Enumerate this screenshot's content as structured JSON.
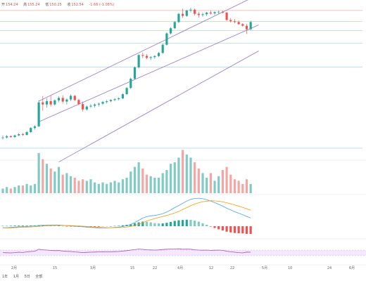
{
  "ohlc": {
    "open_label": "开",
    "open": "154.24",
    "high_label": "高",
    "high": "155.24",
    "low_label": "低",
    "low": "150.25",
    "close_label": "收",
    "close": "152.54",
    "change": "-1.66 (-1.08%)"
  },
  "timeframes": [
    "1年",
    "1月",
    "5日",
    "全部"
  ],
  "colors": {
    "up": "#26a69a",
    "down": "#ef5350",
    "channel": "#9575cd",
    "macd_line": "#42a5f5",
    "signal_line": "#ff9800",
    "rsi_line": "#ab47bc",
    "rsi_band": "#f3e8ff",
    "hline_red": "#ef9a9a",
    "hline_green": "#a5d6a7",
    "hline_teal": "#80cbc4",
    "hline_blue": "#90caf9"
  },
  "chart_data": {
    "type": "candlestick",
    "x_tick_labels": [
      "2月",
      "15",
      "3月",
      "15",
      "22",
      "4月",
      "12",
      "22",
      "5月",
      "10",
      "24",
      "6月"
    ],
    "price_panel": {
      "candles": [
        [
          100,
          101,
          99,
          100
        ],
        [
          100,
          101.2,
          99.5,
          100.6
        ],
        [
          100.6,
          101,
          99.8,
          100.2
        ],
        [
          100.2,
          101.4,
          99.9,
          101
        ],
        [
          101,
          102,
          100.6,
          101.6
        ],
        [
          101.6,
          102.2,
          100.8,
          101.2
        ],
        [
          101.2,
          103,
          101,
          102.6
        ],
        [
          102.6,
          105,
          102.2,
          104.6
        ],
        [
          104.6,
          106,
          103.8,
          105.4
        ],
        [
          105.4,
          118,
          105,
          117
        ],
        [
          117,
          120,
          113,
          116
        ],
        [
          116,
          119,
          114.5,
          117.6
        ],
        [
          117.6,
          120.5,
          115,
          116
        ],
        [
          116,
          118.5,
          115.5,
          118
        ],
        [
          118,
          120,
          117,
          119.2
        ],
        [
          119.2,
          120.5,
          116.5,
          117.4
        ],
        [
          117.4,
          119,
          116,
          118.4
        ],
        [
          118.4,
          121,
          117.6,
          120.2
        ],
        [
          120.2,
          120.6,
          117.6,
          118.2
        ],
        [
          118.2,
          118.8,
          115.6,
          116.2
        ],
        [
          116.2,
          117.4,
          112.6,
          113.6
        ],
        [
          113.6,
          115.5,
          113,
          115
        ],
        [
          115,
          116.2,
          114.3,
          115.4
        ],
        [
          115.4,
          116.6,
          114.6,
          116
        ],
        [
          116,
          117,
          115,
          116.4
        ],
        [
          116.4,
          117.8,
          115.8,
          117.2
        ],
        [
          117.2,
          118.2,
          116.5,
          117.6
        ],
        [
          117.6,
          118.6,
          117,
          118.2
        ],
        [
          118.2,
          119.2,
          117.6,
          118.6
        ],
        [
          118.6,
          119.5,
          118,
          119
        ],
        [
          119,
          121.5,
          118.6,
          121
        ],
        [
          121,
          124.5,
          120.6,
          124
        ],
        [
          124,
          129,
          123.5,
          128.5
        ],
        [
          128.5,
          134.5,
          128,
          134
        ],
        [
          134,
          140.5,
          133.5,
          140
        ],
        [
          140,
          141.2,
          138.5,
          139.6
        ],
        [
          139.6,
          140.5,
          138,
          138.6
        ],
        [
          138.6,
          139.5,
          137.5,
          139
        ],
        [
          139,
          140,
          138.2,
          139.5
        ],
        [
          139.5,
          141.5,
          139,
          141
        ],
        [
          141,
          145.5,
          140.6,
          145
        ],
        [
          145,
          151,
          144.6,
          150.5
        ],
        [
          150.5,
          153.6,
          150,
          153
        ],
        [
          153,
          156.5,
          152.6,
          156
        ],
        [
          156,
          160.5,
          155.5,
          160
        ],
        [
          160,
          162.5,
          158,
          159
        ],
        [
          159,
          162,
          158.5,
          161.6
        ],
        [
          161.6,
          163,
          160.6,
          162
        ],
        [
          162,
          162.5,
          159.2,
          160
        ],
        [
          160,
          161,
          158.2,
          159.4
        ],
        [
          159.4,
          160.5,
          158.6,
          159.8
        ],
        [
          159.8,
          161,
          159,
          160.6
        ],
        [
          160.6,
          161.5,
          159.6,
          160.2
        ],
        [
          160.2,
          161.2,
          159.4,
          160.8
        ],
        [
          160.8,
          161.5,
          159.8,
          161
        ],
        [
          161,
          161.5,
          160.2,
          160.6
        ],
        [
          160.6,
          161,
          156.6,
          157
        ],
        [
          157,
          158,
          155.8,
          156.4
        ],
        [
          156.4,
          157.4,
          155.4,
          156
        ],
        [
          156,
          156.8,
          154.6,
          155
        ],
        [
          155,
          155.5,
          153.8,
          154.2
        ],
        [
          154.2,
          155.2,
          150.2,
          152.5
        ],
        [
          152.5,
          156.6,
          152,
          156
        ]
      ],
      "channel_upper_x": [
        9,
        64
      ],
      "channel_upper_y": [
        117.6,
        169.3
      ],
      "channel_lower_x": [
        9,
        64
      ],
      "channel_lower_y": [
        107.6,
        154.6
      ],
      "channel_bottom_x": [
        14,
        64
      ],
      "channel_bottom_y": [
        88.1,
        142
      ],
      "horizontal_levels": [
        {
          "price": 161.6,
          "color_key": "hline_red"
        },
        {
          "price": 156.3,
          "color_key": "hline_green"
        },
        {
          "price": 151.8,
          "color_key": "hline_green"
        },
        {
          "price": 145.7,
          "color_key": "hline_teal"
        },
        {
          "price": 134.2,
          "color_key": "hline_blue"
        },
        {
          "price": 94.8,
          "color_key": "hline_blue"
        }
      ]
    },
    "volume_panel": {
      "values": [
        3,
        4,
        3,
        4,
        5,
        5,
        6,
        5,
        6,
        26,
        22,
        19,
        16,
        14,
        17,
        12,
        13,
        11,
        10,
        8,
        9,
        8,
        9,
        7,
        6,
        7,
        6,
        7,
        8,
        7,
        9,
        10,
        14,
        17,
        20,
        16,
        12,
        11,
        10,
        10,
        13,
        15,
        19,
        20,
        23,
        28,
        25,
        23,
        20,
        16,
        13,
        10,
        13,
        8,
        11,
        15,
        17,
        12,
        9,
        8,
        6,
        9,
        6
      ]
    },
    "macd_panel": {
      "macd_line": [
        -1,
        -1,
        -0.8,
        -0.6,
        -0.4,
        -0.3,
        -0.2,
        0,
        0.2,
        0.5,
        0.7,
        0.8,
        0.8,
        0.8,
        0.8,
        0.6,
        0.4,
        0.2,
        0,
        -0.2,
        -0.4,
        -0.6,
        -0.8,
        -1,
        -1.2,
        -1.2,
        -1.2,
        -1,
        -0.8,
        -0.6,
        -0.2,
        0.4,
        1.2,
        2.5,
        4,
        5.5,
        6.5,
        7,
        7.3,
        7.8,
        8.5,
        9.6,
        11,
        12.6,
        14,
        15.5,
        17,
        18.2,
        18.8,
        19,
        18.6,
        18,
        17,
        16,
        14.8,
        13.6,
        12.2,
        11,
        9.8,
        8.8,
        7.8,
        6.6,
        5.6
      ],
      "signal_line": [
        -1.2,
        -1.2,
        -1.1,
        -1,
        -0.8,
        -0.7,
        -0.6,
        -0.5,
        -0.3,
        -0.1,
        0.1,
        0.3,
        0.4,
        0.5,
        0.5,
        0.5,
        0.5,
        0.4,
        0.3,
        0.2,
        0,
        -0.2,
        -0.4,
        -0.6,
        -0.8,
        -0.9,
        -1,
        -1,
        -1,
        -0.9,
        -0.8,
        -0.5,
        -0.1,
        0.5,
        1.4,
        2.4,
        3.5,
        4.4,
        5.2,
        5.9,
        6.6,
        7.3,
        8.1,
        9,
        10,
        11.3,
        12.6,
        13.9,
        15,
        15.9,
        16.6,
        17,
        17.3,
        17.2,
        16.9,
        16.5,
        15.9,
        15.2,
        14.4,
        13.6,
        12.7,
        11.8,
        10.8
      ],
      "histogram": [
        0.2,
        0.2,
        0.3,
        0.4,
        0.4,
        0.4,
        0.4,
        0.5,
        0.5,
        0.6,
        0.6,
        0.5,
        0.4,
        0.3,
        0.3,
        0.1,
        -0.1,
        -0.2,
        -0.3,
        -0.4,
        -0.4,
        -0.4,
        -0.4,
        -0.4,
        -0.4,
        -0.3,
        -0.2,
        0,
        0.2,
        0.3,
        0.6,
        0.9,
        1.3,
        2,
        2.6,
        3.1,
        3,
        2.6,
        2.1,
        1.9,
        1.9,
        2.3,
        2.9,
        3.6,
        4,
        4.2,
        4.4,
        4.3,
        3.8,
        3.1,
        2,
        1,
        -0.3,
        -1.2,
        -2.1,
        -2.9,
        -3.7,
        -4.2,
        -4.6,
        -4.8,
        -4.9,
        -5.2,
        -5.2
      ]
    },
    "rsi_panel": {
      "values": [
        52,
        51,
        50,
        52,
        55,
        53,
        57,
        60,
        62,
        76,
        72,
        70,
        68,
        66,
        67,
        63,
        61,
        60,
        57,
        55,
        52,
        54,
        55,
        56,
        57,
        58,
        57,
        58,
        59,
        60,
        63,
        66,
        70,
        73,
        77,
        75,
        72,
        71,
        70,
        71,
        74,
        76,
        77,
        78,
        79,
        76,
        77,
        76,
        72,
        70,
        69,
        70,
        68,
        69,
        70,
        68,
        62,
        58,
        55,
        52,
        50,
        56,
        55
      ],
      "band": [
        30,
        70
      ]
    }
  }
}
